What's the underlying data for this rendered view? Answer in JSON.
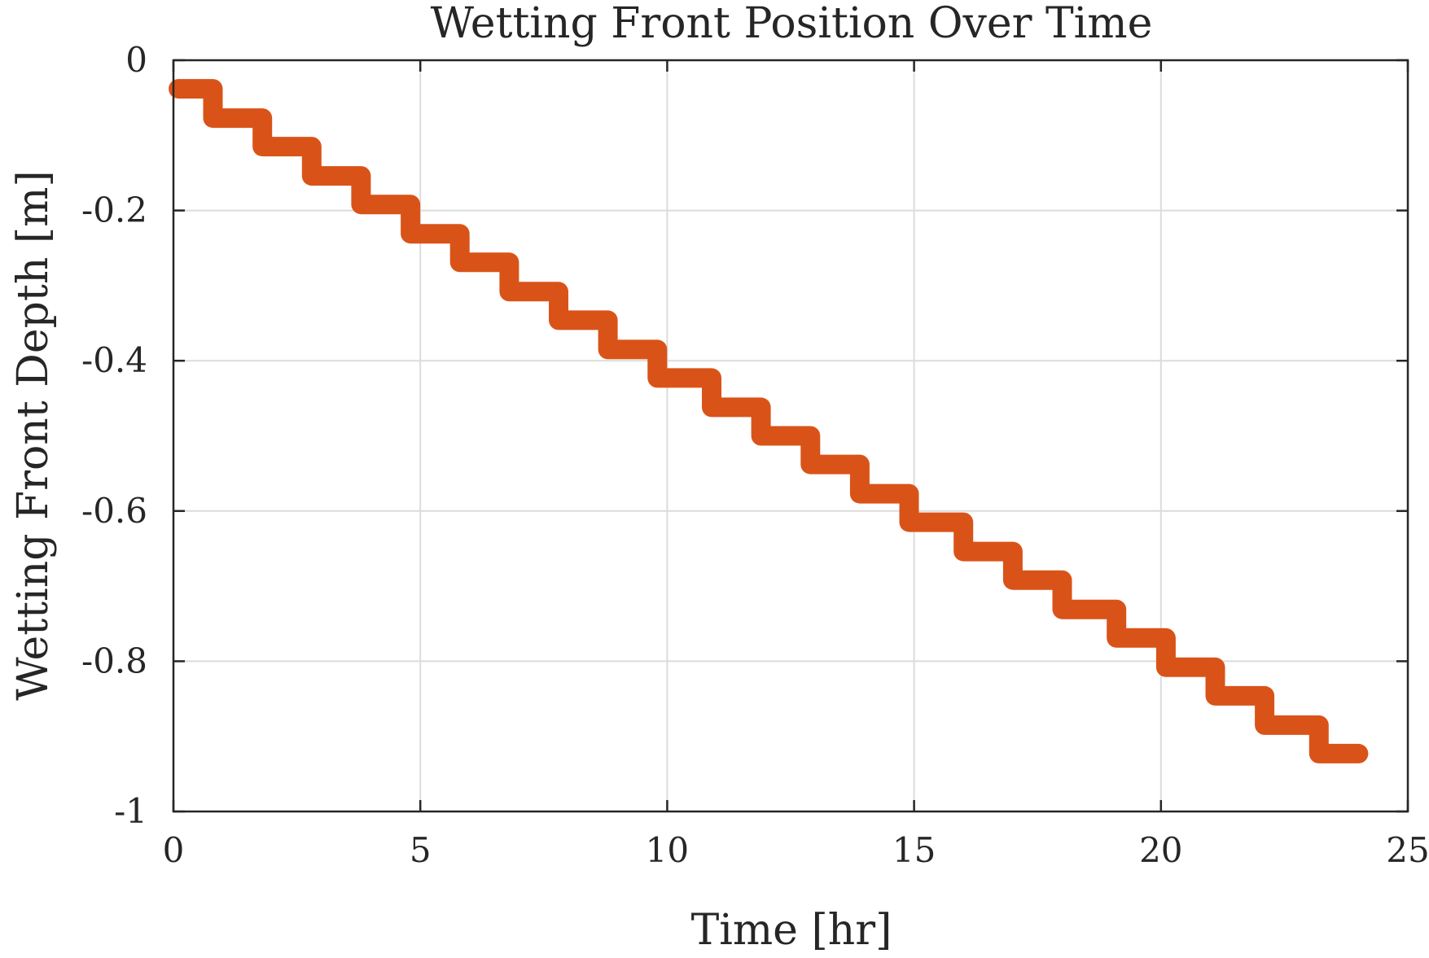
{
  "chart_data": {
    "type": "line",
    "title": "Wetting Front Position Over Time",
    "xlabel": "Time [hr]",
    "ylabel": "Wetting Front Depth [m]",
    "xlim": [
      0,
      25
    ],
    "ylim": [
      -1,
      0
    ],
    "xticks": [
      0,
      5,
      10,
      15,
      20,
      25
    ],
    "yticks": [
      0,
      -0.2,
      -0.4,
      -0.6,
      -0.8,
      -1
    ],
    "xtick_labels": [
      "0",
      "5",
      "10",
      "15",
      "20",
      "25"
    ],
    "ytick_labels": [
      "0",
      "-0.2",
      "-0.4",
      "-0.6",
      "-0.8",
      "-1"
    ],
    "grid": true,
    "box": true,
    "line_color": "#D95319",
    "series": [
      {
        "x": [
          0.1,
          0.8,
          0.8,
          1.8,
          1.8,
          2.8,
          2.8,
          3.8,
          3.8,
          4.8,
          4.8,
          5.8,
          5.8,
          6.8,
          6.8,
          7.8,
          7.8,
          8.8,
          8.8,
          9.8,
          9.8,
          10.9,
          10.9,
          11.9,
          11.9,
          12.9,
          12.9,
          13.9,
          13.9,
          14.9,
          14.9,
          16.0,
          16.0,
          17.0,
          17.0,
          18.0,
          18.0,
          19.1,
          19.1,
          20.1,
          20.1,
          21.1,
          21.1,
          22.1,
          22.1,
          23.2,
          23.2,
          24.0
        ],
        "y": [
          -0.038,
          -0.038,
          -0.077,
          -0.077,
          -0.115,
          -0.115,
          -0.154,
          -0.154,
          -0.192,
          -0.192,
          -0.231,
          -0.231,
          -0.269,
          -0.269,
          -0.308,
          -0.308,
          -0.346,
          -0.346,
          -0.385,
          -0.385,
          -0.423,
          -0.423,
          -0.462,
          -0.462,
          -0.5,
          -0.5,
          -0.538,
          -0.538,
          -0.577,
          -0.577,
          -0.615,
          -0.615,
          -0.654,
          -0.654,
          -0.692,
          -0.692,
          -0.731,
          -0.731,
          -0.769,
          -0.769,
          -0.808,
          -0.808,
          -0.846,
          -0.846,
          -0.885,
          -0.885,
          -0.923,
          -0.923
        ]
      }
    ]
  }
}
